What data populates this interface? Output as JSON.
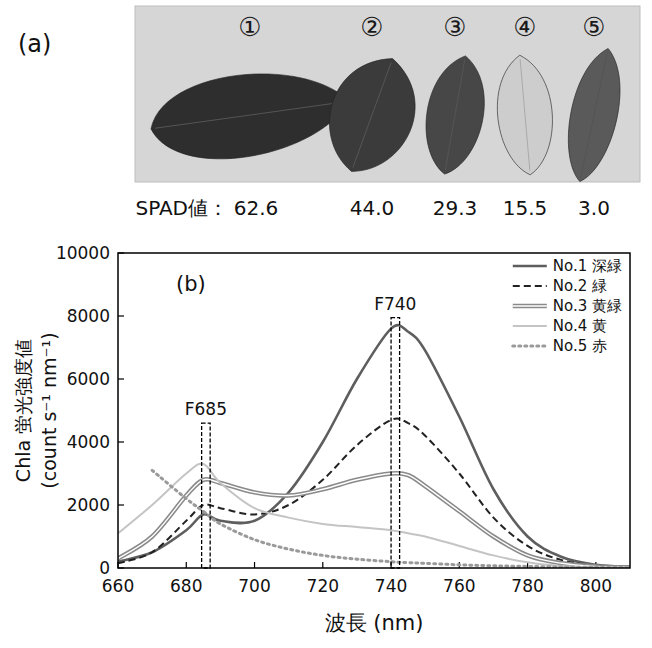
{
  "photo": {
    "panel_label": "(a)",
    "spad_label": "SPAD値：",
    "leaves": [
      {
        "label": "①",
        "spad": "62.6"
      },
      {
        "label": "②",
        "spad": "44.0"
      },
      {
        "label": "③",
        "spad": "29.3"
      },
      {
        "label": "④",
        "spad": "15.5"
      },
      {
        "label": "⑤",
        "spad": "3.0"
      }
    ]
  },
  "chart_data": {
    "type": "line",
    "panel_label": "(b)",
    "xlabel": "波長 (nm)",
    "ylabel": [
      "Chla 蛍光強度値",
      "(count s⁻¹ nm⁻¹)"
    ],
    "x": [
      660,
      670,
      680,
      685,
      690,
      700,
      710,
      720,
      730,
      740,
      745,
      750,
      760,
      770,
      780,
      790,
      800,
      810
    ],
    "xlim": [
      660,
      810
    ],
    "xticks": [
      660,
      680,
      700,
      720,
      740,
      760,
      780,
      800
    ],
    "ylim": [
      0,
      10000
    ],
    "yticks": [
      0,
      2000,
      4000,
      6000,
      8000,
      10000
    ],
    "grid": false,
    "legend": "upper right",
    "series": [
      {
        "name": "No.1 深緑",
        "color": "#5e5e5e",
        "line_style": "solid",
        "values": [
          200,
          500,
          1200,
          1700,
          1500,
          1500,
          2400,
          4000,
          6000,
          7600,
          7500,
          6900,
          4800,
          2500,
          1000,
          350,
          100,
          30
        ]
      },
      {
        "name": "No.2 緑",
        "color": "#222222",
        "line_style": "dashed",
        "values": [
          150,
          500,
          1500,
          2000,
          1900,
          1700,
          2000,
          2800,
          3900,
          4700,
          4600,
          4200,
          3000,
          1600,
          700,
          250,
          80,
          30
        ]
      },
      {
        "name": "No.3 黄緑",
        "color": "#8a8a8a",
        "line_style": "double",
        "values": [
          300,
          1000,
          2300,
          2800,
          2700,
          2400,
          2300,
          2500,
          2800,
          3000,
          2950,
          2600,
          1800,
          1000,
          400,
          150,
          50,
          20
        ]
      },
      {
        "name": "No.4 黄",
        "color": "#c4c4c4",
        "line_style": "solid",
        "values": [
          1100,
          2000,
          3000,
          3300,
          2700,
          1900,
          1600,
          1400,
          1300,
          1200,
          1100,
          1000,
          700,
          400,
          180,
          60,
          20,
          10
        ]
      },
      {
        "name": "No.5 赤",
        "color": "#9a9a9a",
        "line_style": "dotted",
        "values": [
          null,
          3100,
          2200,
          1800,
          1400,
          900,
          600,
          400,
          280,
          200,
          170,
          150,
          100,
          70,
          50,
          30,
          20,
          10
        ]
      }
    ],
    "annotations": [
      {
        "text": "F685",
        "x": [
          684.5,
          687
        ],
        "y": 4600
      },
      {
        "text": "F740",
        "x": [
          740,
          742.5
        ],
        "y": 7950
      }
    ]
  }
}
